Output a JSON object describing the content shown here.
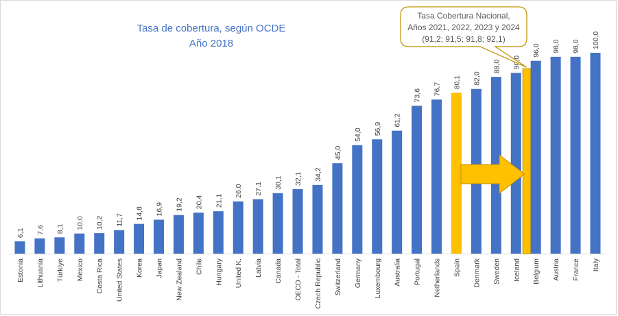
{
  "chart_data": {
    "type": "bar",
    "title": "Tasa de cobertura, según OCDE",
    "subtitle": "Año 2018",
    "xlabel": "",
    "ylabel": "",
    "ylim": [
      0,
      100
    ],
    "grid": false,
    "categories": [
      "Estonia",
      "Lithuania",
      "Türkiye",
      "Mexico",
      "Costa Rica",
      "United States",
      "Korea",
      "Japan",
      "New Zealand",
      "Chile",
      "Hungary",
      "United K.",
      "Latvia",
      "Canada",
      "OECD - Total",
      "Czech Republic",
      "Switzerland",
      "Germany",
      "Luxembourg",
      "Australia",
      "Portugal",
      "Netherlands",
      "Spain",
      "Denmark",
      "Sweden",
      "Iceland",
      "Belgium",
      "Austria",
      "France",
      "Italy"
    ],
    "values": [
      6.1,
      7.6,
      8.1,
      10.0,
      10.2,
      11.7,
      14.8,
      16.9,
      19.2,
      20.4,
      21.1,
      26.0,
      27.1,
      30.1,
      32.1,
      34.2,
      45.0,
      54.0,
      56.9,
      61.2,
      73.6,
      76.7,
      80.1,
      82.0,
      88.0,
      90.0,
      96.0,
      98.0,
      98.0,
      100.0
    ],
    "value_labels": [
      "6,1",
      "7,6",
      "8,1",
      "10,0",
      "10,2",
      "11,7",
      "14,8",
      "16,9",
      "19,2",
      "20,4",
      "21,1",
      "26,0",
      "27,1",
      "30,1",
      "32,1",
      "34,2",
      "45,0",
      "54,0",
      "56,9",
      "61,2",
      "73,6",
      "76,7",
      "80,1",
      "82,0",
      "88,0",
      "90,0",
      "96,0",
      "98,0",
      "98,0",
      "100,0"
    ],
    "highlight_category": "Spain",
    "national_bar": {
      "value": 92.1,
      "placed_after": "Iceland"
    },
    "annotation": {
      "lines": [
        "Tasa Cobertura Nacional,",
        "Años 2021, 2022, 2023 y 2024",
        "(91,2; 91,5; 91,8; 92,1)"
      ],
      "values": [
        91.2,
        91.5,
        91.8,
        92.1
      ]
    },
    "colors": {
      "bar": "#4472C4",
      "highlight": "#FFC000",
      "title": "#4472C4",
      "callout_border": "#BF9000",
      "callout_fill": "#FFFFFF"
    }
  }
}
